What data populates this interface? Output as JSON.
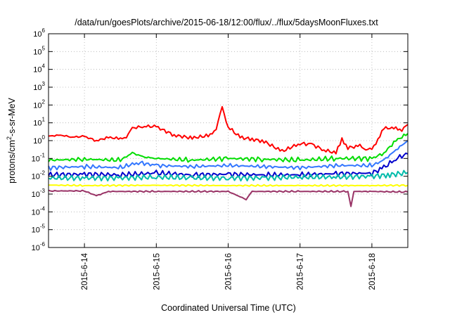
{
  "chart_data": {
    "type": "line",
    "title": "/data/run/goesPlots/archive/2015-06-18/12:00/flux/../flux/5daysMoonFluxes.txt",
    "xlabel": "Coordinated Universal Time (UTC)",
    "ylabel": {
      "prefix": "protons/cm",
      "sup": "2",
      "suffix": "-s-sr-MeV"
    },
    "yscale": "log",
    "ylim_exp": [
      -6,
      6
    ],
    "y_ticks": [
      {
        "base": "10",
        "exp": "-6"
      },
      {
        "base": "10",
        "exp": "-5"
      },
      {
        "base": "10",
        "exp": "-4"
      },
      {
        "base": "10",
        "exp": "-3"
      },
      {
        "base": "10",
        "exp": "-2"
      },
      {
        "base": "10",
        "exp": "-1"
      },
      {
        "base": "10",
        "exp": "0"
      },
      {
        "base": "10",
        "exp": "1"
      },
      {
        "base": "10",
        "exp": "2"
      },
      {
        "base": "10",
        "exp": "3"
      },
      {
        "base": "10",
        "exp": "4"
      },
      {
        "base": "10",
        "exp": "5"
      },
      {
        "base": "10",
        "exp": "6"
      }
    ],
    "xlim": [
      "2015-06-13 12:00",
      "2015-06-18 12:00"
    ],
    "x_ticks": [
      {
        "t": "2015-06-14 00:00",
        "label": "2015-6-14"
      },
      {
        "t": "2015-06-15 00:00",
        "label": "2015-6-15"
      },
      {
        "t": "2015-06-16 00:00",
        "label": "2015-6-16"
      },
      {
        "t": "2015-06-17 00:00",
        "label": "2015-6-17"
      },
      {
        "t": "2015-06-18 00:00",
        "label": "2015-6-18"
      }
    ],
    "grid": true,
    "series": [
      {
        "color": "#ff0000",
        "points": [
          [
            "2015-06-13 12:00",
            1.8
          ],
          [
            "2015-06-13 16:00",
            2.0
          ],
          [
            "2015-06-13 20:00",
            1.6
          ],
          [
            "2015-06-14 00:00",
            1.7
          ],
          [
            "2015-06-14 04:00",
            1.0
          ],
          [
            "2015-06-14 08:00",
            1.5
          ],
          [
            "2015-06-14 12:00",
            1.3
          ],
          [
            "2015-06-14 14:00",
            1.6
          ],
          [
            "2015-06-14 16:00",
            5.0
          ],
          [
            "2015-06-14 20:00",
            6.5
          ],
          [
            "2015-06-15 00:00",
            6.0
          ],
          [
            "2015-06-15 06:00",
            2.0
          ],
          [
            "2015-06-15 12:00",
            1.4
          ],
          [
            "2015-06-15 18:00",
            2.0
          ],
          [
            "2015-06-15 20:00",
            5.0
          ],
          [
            "2015-06-15 22:00",
            70.0
          ],
          [
            "2015-06-16 00:00",
            6.0
          ],
          [
            "2015-06-16 04:00",
            1.5
          ],
          [
            "2015-06-16 08:00",
            1.2
          ],
          [
            "2015-06-16 12:00",
            0.9
          ],
          [
            "2015-06-16 18:00",
            0.25
          ],
          [
            "2015-06-17 00:00",
            0.7
          ],
          [
            "2015-06-17 04:00",
            0.6
          ],
          [
            "2015-06-17 08:00",
            0.3
          ],
          [
            "2015-06-17 12:00",
            0.2
          ],
          [
            "2015-06-17 14:00",
            1.2
          ],
          [
            "2015-06-17 16:00",
            0.4
          ],
          [
            "2015-06-17 20:00",
            0.5
          ],
          [
            "2015-06-17 22:00",
            0.35
          ],
          [
            "2015-06-18 00:00",
            0.3
          ],
          [
            "2015-06-18 02:00",
            1.2
          ],
          [
            "2015-06-18 04:00",
            5.0
          ],
          [
            "2015-06-18 08:00",
            5.0
          ],
          [
            "2015-06-18 10:00",
            4.0
          ],
          [
            "2015-06-18 12:00",
            8.0
          ]
        ]
      },
      {
        "color": "#00dd00",
        "points": [
          [
            "2015-06-13 12:00",
            0.08
          ],
          [
            "2015-06-14 00:00",
            0.09
          ],
          [
            "2015-06-14 12:00",
            0.08
          ],
          [
            "2015-06-14 16:00",
            0.2
          ],
          [
            "2015-06-14 20:00",
            0.12
          ],
          [
            "2015-06-15 00:00",
            0.1
          ],
          [
            "2015-06-15 12:00",
            0.08
          ],
          [
            "2015-06-16 00:00",
            0.1
          ],
          [
            "2015-06-16 12:00",
            0.09
          ],
          [
            "2015-06-17 00:00",
            0.08
          ],
          [
            "2015-06-17 12:00",
            0.1
          ],
          [
            "2015-06-18 00:00",
            0.1
          ],
          [
            "2015-06-18 04:00",
            0.2
          ],
          [
            "2015-06-18 08:00",
            1.0
          ],
          [
            "2015-06-18 12:00",
            2.5
          ]
        ]
      },
      {
        "color": "#3377ff",
        "points": [
          [
            "2015-06-13 12:00",
            0.03
          ],
          [
            "2015-06-14 00:00",
            0.035
          ],
          [
            "2015-06-14 12:00",
            0.03
          ],
          [
            "2015-06-14 18:00",
            0.06
          ],
          [
            "2015-06-15 00:00",
            0.04
          ],
          [
            "2015-06-15 12:00",
            0.035
          ],
          [
            "2015-06-16 00:00",
            0.04
          ],
          [
            "2015-06-16 12:00",
            0.035
          ],
          [
            "2015-06-17 00:00",
            0.03
          ],
          [
            "2015-06-17 12:00",
            0.04
          ],
          [
            "2015-06-18 00:00",
            0.04
          ],
          [
            "2015-06-18 04:00",
            0.08
          ],
          [
            "2015-06-18 08:00",
            0.3
          ],
          [
            "2015-06-18 12:00",
            1.0
          ]
        ]
      },
      {
        "color": "#0000cc",
        "points": [
          [
            "2015-06-13 12:00",
            0.012
          ],
          [
            "2015-06-14 00:00",
            0.013
          ],
          [
            "2015-06-14 12:00",
            0.012
          ],
          [
            "2015-06-15 00:00",
            0.015
          ],
          [
            "2015-06-15 12:00",
            0.012
          ],
          [
            "2015-06-16 00:00",
            0.013
          ],
          [
            "2015-06-16 12:00",
            0.012
          ],
          [
            "2015-06-17 00:00",
            0.012
          ],
          [
            "2015-06-17 12:00",
            0.014
          ],
          [
            "2015-06-18 00:00",
            0.015
          ],
          [
            "2015-06-18 04:00",
            0.03
          ],
          [
            "2015-06-18 08:00",
            0.1
          ],
          [
            "2015-06-18 12:00",
            0.18
          ]
        ]
      },
      {
        "color": "#00bbaa",
        "points": [
          [
            "2015-06-13 12:00",
            0.008
          ],
          [
            "2015-06-14 00:00",
            0.008
          ],
          [
            "2015-06-14 12:00",
            0.008
          ],
          [
            "2015-06-15 00:00",
            0.009
          ],
          [
            "2015-06-15 12:00",
            0.008
          ],
          [
            "2015-06-16 00:00",
            0.008
          ],
          [
            "2015-06-16 12:00",
            0.008
          ],
          [
            "2015-06-17 00:00",
            0.009
          ],
          [
            "2015-06-17 12:00",
            0.009
          ],
          [
            "2015-06-18 00:00",
            0.01
          ],
          [
            "2015-06-18 06:00",
            0.012
          ],
          [
            "2015-06-18 12:00",
            0.016
          ]
        ]
      },
      {
        "color": "#ffff00",
        "points": [
          [
            "2015-06-13 12:00",
            0.0032
          ],
          [
            "2015-06-14 00:00",
            0.003
          ],
          [
            "2015-06-15 00:00",
            0.0031
          ],
          [
            "2015-06-16 00:00",
            0.003
          ],
          [
            "2015-06-17 00:00",
            0.003
          ],
          [
            "2015-06-18 00:00",
            0.003
          ],
          [
            "2015-06-18 12:00",
            0.0031
          ]
        ]
      },
      {
        "color": "#993366",
        "points": [
          [
            "2015-06-13 12:00",
            0.0015
          ],
          [
            "2015-06-14 00:00",
            0.0015
          ],
          [
            "2015-06-14 04:00",
            0.0008
          ],
          [
            "2015-06-14 08:00",
            0.0014
          ],
          [
            "2015-06-15 00:00",
            0.0014
          ],
          [
            "2015-06-16 00:00",
            0.0014
          ],
          [
            "2015-06-16 06:00",
            0.0005
          ],
          [
            "2015-06-16 08:00",
            0.0014
          ],
          [
            "2015-06-17 00:00",
            0.0014
          ],
          [
            "2015-06-17 16:00",
            0.0014
          ],
          [
            "2015-06-17 17:00",
            0.0002
          ],
          [
            "2015-06-17 18:00",
            0.0014
          ],
          [
            "2015-06-18 00:00",
            0.0014
          ],
          [
            "2015-06-18 12:00",
            0.0013
          ]
        ]
      }
    ]
  }
}
